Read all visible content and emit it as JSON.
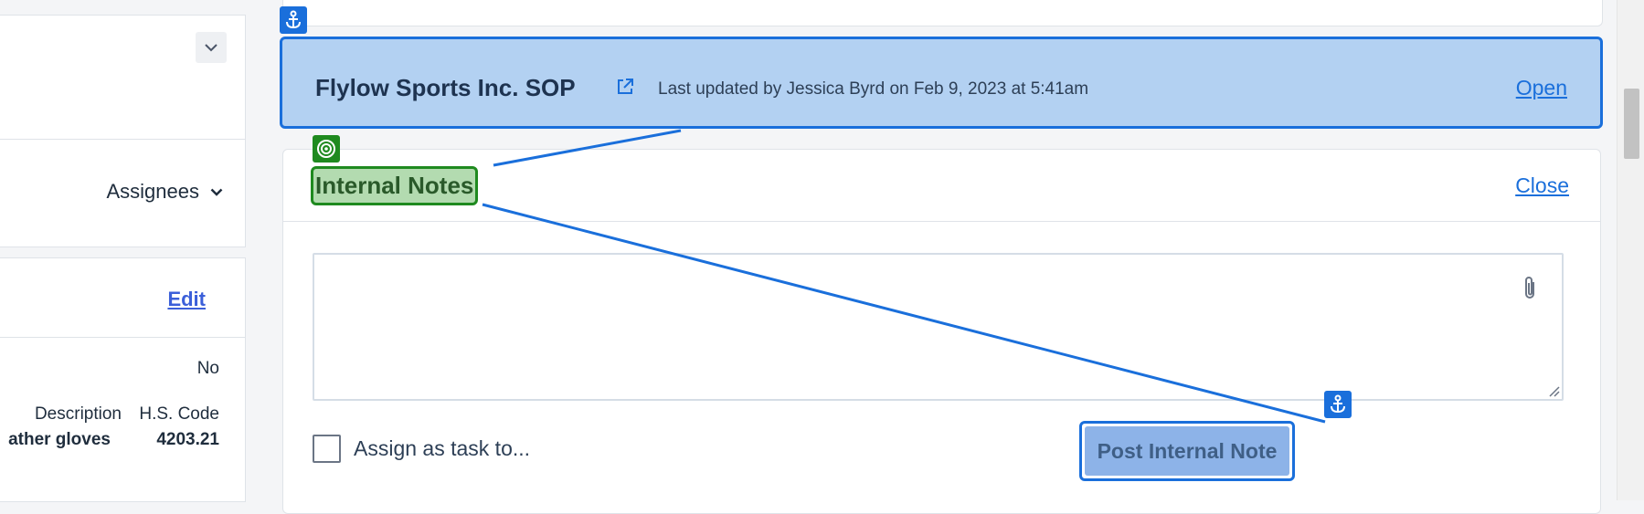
{
  "left_panel": {
    "assignees_label": "Assignees",
    "edit_label": "Edit",
    "value_no": "No",
    "table": {
      "headers": [
        "Description",
        "H.S. Code"
      ],
      "row": [
        "ather gloves",
        "4203.21"
      ]
    }
  },
  "sop": {
    "title": "Flylow Sports Inc. SOP",
    "meta": "Last updated by Jessica Byrd on Feb 9, 2023 at 5:41am",
    "open_label": "Open"
  },
  "notes": {
    "title": "Internal Notes",
    "close_label": "Close",
    "textarea_value": "",
    "assign_label": "Assign as task to...",
    "assign_checked": false,
    "post_label": "Post Internal Note"
  },
  "icons": {
    "anchor": "anchor-icon",
    "target": "target-icon",
    "external": "external-link-icon",
    "attach": "paperclip-icon",
    "chevron": "chevron-down-icon"
  },
  "colors": {
    "highlight_blue": "#1a6fdb",
    "highlight_blue_fill": "#b3d1f2",
    "highlight_green": "#1f8a1f",
    "highlight_green_fill": "#b3dbb0",
    "link": "#3b5fd9"
  }
}
